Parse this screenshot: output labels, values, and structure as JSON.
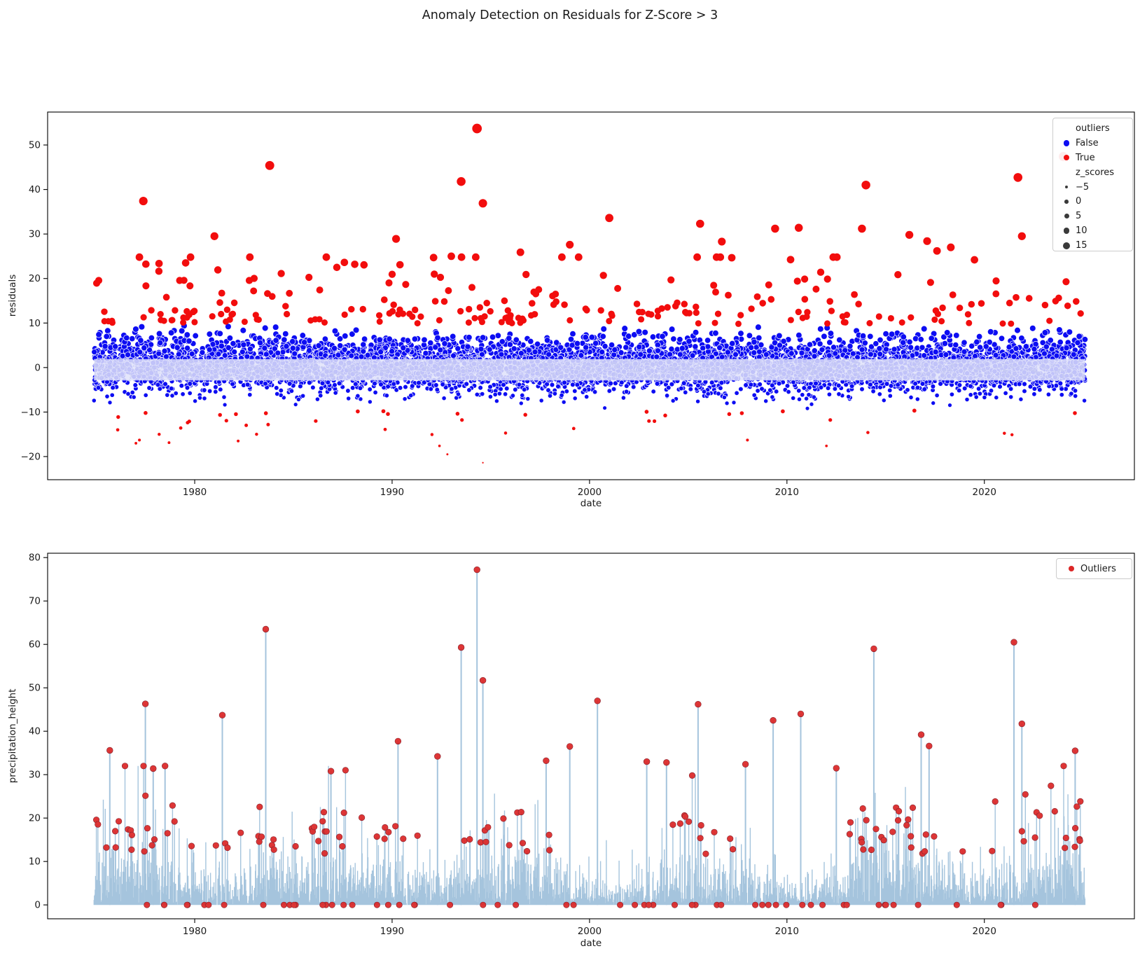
{
  "figure": {
    "title": "Anomaly Detection on Residuals for Z-Score > 3",
    "background": "#ffffff"
  },
  "colors": {
    "inlier": "#0d0df2",
    "outlier": "#f20d0d",
    "haze_dot": "#c6c9f4",
    "haze_band": "#e0e2fb",
    "spike": "#a5c4dd",
    "outlier2": "#dc2626",
    "outlier2_edge": "#7a101c",
    "legend_size_dot": "#3a3a3a",
    "axis": "#000000",
    "text": "#1a1a1a"
  },
  "chart_data": [
    {
      "type": "scatter",
      "xlabel": "date",
      "ylabel": "residuals",
      "xlim": [
        1972.55,
        2027.6
      ],
      "ylim": [
        -25.2,
        57.4
      ],
      "xticks": {
        "values": [
          1980,
          1990,
          2000,
          2010,
          2020
        ],
        "labels": [
          "1980",
          "1990",
          "2000",
          "2010",
          "2020"
        ]
      },
      "yticks": {
        "values": [
          -20,
          -10,
          0,
          10,
          20,
          30,
          40,
          50
        ],
        "labels": [
          "−20",
          "−10",
          "0",
          "10",
          "20",
          "30",
          "40",
          "50"
        ]
      },
      "grid": false,
      "legend": {
        "position": "upper right",
        "header": "outliers",
        "entries": [
          {
            "label": "False",
            "color": "#0d0df2"
          },
          {
            "label": "True",
            "color": "#f20d0d"
          }
        ],
        "size_header": "z_scores",
        "size_entries": [
          {
            "label": "−5",
            "z": -5
          },
          {
            "label": "0",
            "z": 0
          },
          {
            "label": "5",
            "z": 5
          },
          {
            "label": "10",
            "z": 10
          },
          {
            "label": "15",
            "z": 15
          }
        ]
      },
      "series": [
        {
          "name": "inliers_false",
          "color": "#0d0df2",
          "generated": true,
          "gen": {
            "seed": 42,
            "n": 6200,
            "x_range": [
              1974.9,
              2025.1
            ],
            "y_mean": 0.4,
            "y_sigma": 3.05,
            "y_clip": 9.4
          }
        },
        {
          "name": "dense_core_haze",
          "color": "#c6c9f4",
          "generated": true,
          "gen": {
            "seed": 7,
            "n": 1700,
            "x_range": [
              1974.9,
              2025.1
            ],
            "y_mean": -0.3,
            "y_sigma": 1.15,
            "band_top": 1.9,
            "band_bottom": -2.9
          }
        },
        {
          "name": "outliers_true_generated_high",
          "color": "#f20d0d",
          "generated": true,
          "gen": {
            "seed": 11,
            "n": 238,
            "x_range": [
              1975.0,
              2025.0
            ],
            "y_base": 9.8,
            "y_exp_mean": 4.8,
            "y_cap": 24.8
          }
        },
        {
          "name": "outliers_true_generated_low",
          "color": "#f20d0d",
          "generated": true,
          "gen": {
            "seed": 13,
            "n": 36,
            "x_range": [
              1975.2,
              2024.8
            ],
            "y_base": -9.6,
            "y_exp_mean": 2.4,
            "y_cap": -17.0
          }
        },
        {
          "name": "outliers_true_featured_high",
          "color": "#f20d0d",
          "points": [
            [
              1994.3,
              53.7
            ],
            [
              2024.0,
              47.4
            ],
            [
              1983.8,
              45.4
            ],
            [
              2021.7,
              42.7
            ],
            [
              1993.5,
              41.8
            ],
            [
              2014.0,
              41.0
            ],
            [
              1977.4,
              37.4
            ],
            [
              1994.6,
              36.9
            ],
            [
              2001.0,
              33.6
            ],
            [
              2005.6,
              32.3
            ],
            [
              2010.6,
              31.4
            ],
            [
              2013.8,
              31.2
            ],
            [
              2009.4,
              31.2
            ],
            [
              2016.2,
              29.8
            ],
            [
              2021.9,
              29.5
            ],
            [
              1981.0,
              29.5
            ],
            [
              1990.2,
              28.9
            ],
            [
              2017.1,
              28.4
            ],
            [
              2006.7,
              28.3
            ],
            [
              1999.0,
              27.6
            ],
            [
              2018.3,
              27.0
            ],
            [
              2017.6,
              26.2
            ],
            [
              1996.5,
              25.9
            ],
            [
              1993.0,
              25.0
            ],
            [
              1992.1,
              24.7
            ],
            [
              2019.5,
              24.2
            ],
            [
              1990.4,
              23.1
            ],
            [
              1987.2,
              22.5
            ]
          ]
        },
        {
          "name": "outliers_true_featured_low",
          "color": "#f20d0d",
          "points": [
            [
              1994.6,
              -21.4
            ],
            [
              1992.8,
              -19.5
            ],
            [
              1992.4,
              -17.6
            ],
            [
              2012.0,
              -17.6
            ],
            [
              1982.2,
              -16.5
            ],
            [
              2008.0,
              -16.3
            ],
            [
              1978.2,
              -15.0
            ],
            [
              2021.4,
              -15.1
            ],
            [
              2014.1,
              -14.6
            ],
            [
              1976.1,
              -14.0
            ],
            [
              1999.2,
              -13.7
            ]
          ]
        }
      ],
      "size_mapping": {
        "z_equals": "residual / 3.25",
        "area": "10 + (z + 5) * 4.7",
        "area_min": 3
      }
    },
    {
      "type": "spikes+scatter",
      "xlabel": "date",
      "ylabel": "precipitation_height",
      "xlim": [
        1972.55,
        2027.6
      ],
      "ylim": [
        -3.2,
        81.0
      ],
      "xticks": {
        "values": [
          1980,
          1990,
          2000,
          2010,
          2020
        ],
        "labels": [
          "1980",
          "1990",
          "2000",
          "2010",
          "2020"
        ]
      },
      "yticks": {
        "values": [
          0,
          10,
          20,
          30,
          40,
          50,
          60,
          70,
          80
        ],
        "labels": [
          "0",
          "10",
          "20",
          "30",
          "40",
          "50",
          "60",
          "70",
          "80"
        ]
      },
      "grid": false,
      "legend": {
        "position": "upper right",
        "entries": [
          {
            "label": "Outliers",
            "color": "#dc2626"
          }
        ]
      },
      "series": [
        {
          "name": "precipitation_spikes",
          "color": "#a5c4dd",
          "generated": true,
          "gen": {
            "seed": 5,
            "x_range": [
              1974.9,
              2025.1
            ],
            "x_step": 0.0196,
            "exp_mean": 5.2,
            "cap": 32,
            "skip_prob": 0.045
          }
        },
        {
          "name": "outlier_dots_generated",
          "color": "#dc2626",
          "generated": true,
          "gen": {
            "seed": 19,
            "mark_over": 13,
            "mark_prob": 0.6,
            "mark_low": 11.5,
            "mark_low_prob": 0.25
          }
        },
        {
          "name": "outlier_dots_zero_line",
          "color": "#dc2626",
          "generated": true,
          "gen": {
            "seed": 17,
            "n": 58,
            "x_range": [
              1975.3,
              2024.7
            ],
            "value": 0
          }
        },
        {
          "name": "outlier_spikes_featured",
          "color": "#dc2626",
          "points": [
            [
              1994.3,
              77.2
            ],
            [
              1983.6,
              63.5
            ],
            [
              2021.5,
              60.5
            ],
            [
              1993.5,
              59.3
            ],
            [
              2014.4,
              59.0
            ],
            [
              1994.6,
              51.7
            ],
            [
              2000.4,
              47.0
            ],
            [
              1977.5,
              46.3
            ],
            [
              2005.5,
              46.2
            ],
            [
              2010.7,
              44.0
            ],
            [
              1981.4,
              43.7
            ],
            [
              2009.3,
              42.5
            ],
            [
              2021.9,
              41.7
            ],
            [
              2016.8,
              39.2
            ],
            [
              1990.3,
              37.7
            ],
            [
              2017.2,
              36.6
            ],
            [
              1999.0,
              36.5
            ],
            [
              1975.7,
              35.6
            ],
            [
              2024.6,
              35.5
            ],
            [
              1992.3,
              34.2
            ],
            [
              1997.8,
              33.2
            ],
            [
              2002.9,
              33.0
            ],
            [
              2003.9,
              32.8
            ],
            [
              2007.9,
              32.4
            ],
            [
              1978.5,
              32.0
            ],
            [
              2012.5,
              31.5
            ],
            [
              1977.9,
              31.4
            ],
            [
              1986.9,
              30.8
            ]
          ]
        }
      ]
    }
  ]
}
